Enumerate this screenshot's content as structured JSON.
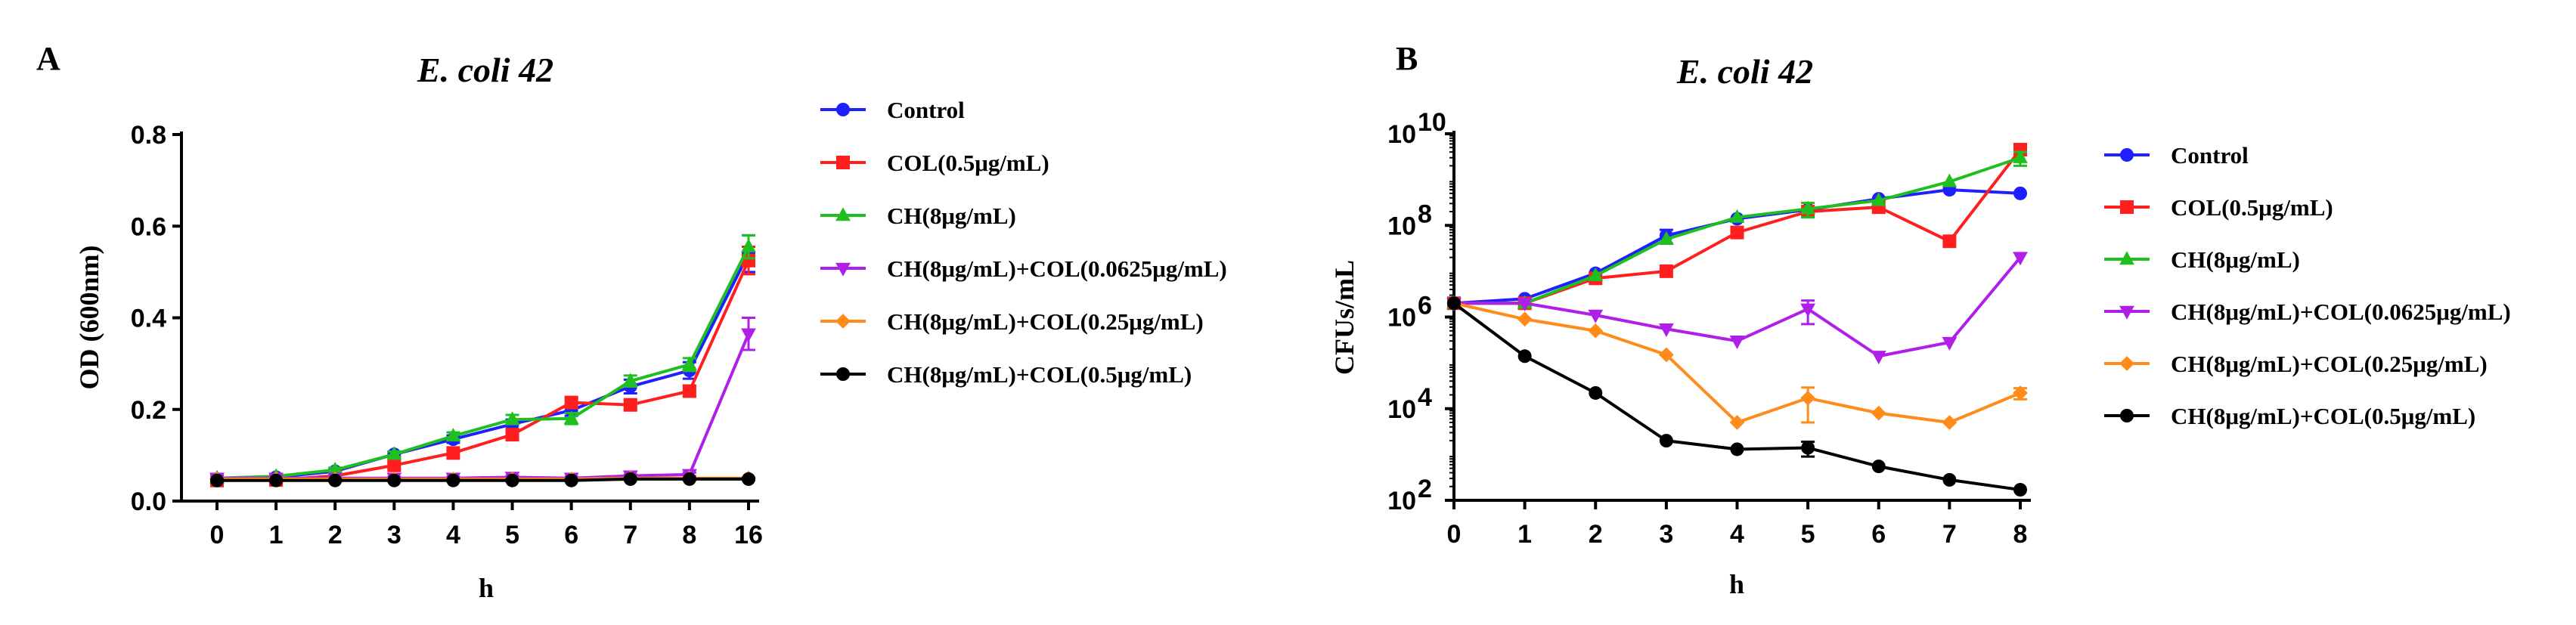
{
  "chart_data": [
    {
      "panel": "A",
      "type": "line",
      "title": "E. coli 42",
      "xlabel": "h",
      "ylabel": "OD (600nm)",
      "y_scale": "linear",
      "categories": [
        "0",
        "1",
        "2",
        "3",
        "4",
        "5",
        "6",
        "7",
        "8",
        "16"
      ],
      "ylim": [
        0,
        0.8
      ],
      "yticks": [
        "0.0",
        "0.2",
        "0.4",
        "0.6",
        "0.8"
      ],
      "legend_position": "right",
      "series": [
        {
          "name": "Control",
          "color": "#1f1fff",
          "marker": "circle",
          "values": [
            0.048,
            0.052,
            0.065,
            0.102,
            0.135,
            0.168,
            0.198,
            0.25,
            0.285,
            0.54
          ],
          "error": [
            0.005,
            0.004,
            0.004,
            0.006,
            0.008,
            0.01,
            0.012,
            0.015,
            0.018,
            0.04
          ]
        },
        {
          "name": "COL(0.5μg/mL)",
          "color": "#ff1f1f",
          "marker": "square",
          "values": [
            0.045,
            0.046,
            0.055,
            0.078,
            0.105,
            0.145,
            0.215,
            0.21,
            0.24,
            0.525
          ],
          "error": [
            0.004,
            0.004,
            0.004,
            0.005,
            0.006,
            0.008,
            0.01,
            0.01,
            0.012,
            0.03
          ]
        },
        {
          "name": "CH(8μg/mL)",
          "color": "#1fbf1f",
          "marker": "triangle",
          "values": [
            0.05,
            0.054,
            0.068,
            0.102,
            0.142,
            0.178,
            0.18,
            0.262,
            0.298,
            0.555
          ],
          "error": [
            0.004,
            0.004,
            0.005,
            0.006,
            0.008,
            0.01,
            0.012,
            0.012,
            0.014,
            0.025
          ]
        },
        {
          "name": "CH(8μg/mL)+COL(0.0625μg/mL)",
          "color": "#b01fe8",
          "marker": "triangle-down",
          "values": [
            0.05,
            0.05,
            0.05,
            0.05,
            0.05,
            0.052,
            0.05,
            0.055,
            0.058,
            0.365
          ],
          "error": [
            0.003,
            0.003,
            0.003,
            0.003,
            0.003,
            0.003,
            0.003,
            0.003,
            0.004,
            0.035
          ]
        },
        {
          "name": "CH(8μg/mL)+COL(0.25μg/mL)",
          "color": "#ff8c1a",
          "marker": "diamond",
          "values": [
            0.048,
            0.048,
            0.048,
            0.048,
            0.048,
            0.048,
            0.048,
            0.05,
            0.05,
            0.05
          ],
          "error": [
            0.002,
            0.002,
            0.002,
            0.002,
            0.002,
            0.002,
            0.002,
            0.002,
            0.002,
            0.002
          ]
        },
        {
          "name": "CH(8μg/mL)+COL(0.5μg/mL)",
          "color": "#000000",
          "marker": "circle",
          "values": [
            0.045,
            0.045,
            0.045,
            0.045,
            0.045,
            0.045,
            0.045,
            0.048,
            0.048,
            0.048
          ],
          "error": [
            0.002,
            0.002,
            0.002,
            0.002,
            0.002,
            0.002,
            0.002,
            0.002,
            0.002,
            0.002
          ]
        }
      ]
    },
    {
      "panel": "B",
      "type": "line",
      "title": "E. coli 42",
      "xlabel": "h",
      "ylabel": "CFUs/mL",
      "y_scale": "log10",
      "categories": [
        "0",
        "1",
        "2",
        "3",
        "4",
        "5",
        "6",
        "7",
        "8"
      ],
      "ylim": [
        100,
        10000000000
      ],
      "yticks": [
        {
          "base": "10",
          "exp": "2"
        },
        {
          "base": "10",
          "exp": "4"
        },
        {
          "base": "10",
          "exp": "6"
        },
        {
          "base": "10",
          "exp": "8"
        },
        {
          "base": "10",
          "exp": "10"
        }
      ],
      "legend_position": "right",
      "series": [
        {
          "name": "Control",
          "color": "#1f1fff",
          "marker": "circle",
          "values": [
            2000000,
            2500000,
            9000000,
            60000000,
            140000000,
            220000000,
            380000000,
            600000000,
            500000000
          ],
          "error": [
            0,
            0,
            0,
            20000000,
            0,
            0,
            0,
            0,
            0
          ]
        },
        {
          "name": "COL(0.5μg/mL)",
          "color": "#ff1f1f",
          "marker": "square",
          "values": [
            2000000,
            2000000,
            7000000,
            10000000,
            70000000,
            200000000,
            250000000,
            45000000,
            4500000000
          ],
          "error": [
            0,
            0,
            0,
            0,
            0,
            0,
            0,
            0,
            1000000000
          ]
        },
        {
          "name": "CH(8μg/mL)",
          "color": "#1fbf1f",
          "marker": "triangle",
          "values": [
            2000000,
            2000000,
            8000000,
            50000000,
            150000000,
            230000000,
            350000000,
            900000000,
            3000000000
          ],
          "error": [
            0,
            0,
            0,
            0,
            0,
            80000000,
            0,
            0,
            1000000000
          ]
        },
        {
          "name": "CH(8μg/mL)+COL(0.0625μg/mL)",
          "color": "#b01fe8",
          "marker": "triangle-down",
          "values": [
            2000000,
            2000000,
            1100000,
            550000,
            300000,
            1500000,
            140000,
            280000,
            20000000
          ],
          "error": [
            0,
            0,
            0,
            0,
            0,
            800000,
            0,
            0,
            0
          ]
        },
        {
          "name": "CH(8μg/mL)+COL(0.25μg/mL)",
          "color": "#ff8c1a",
          "marker": "diamond",
          "values": [
            2000000,
            900000,
            500000,
            150000,
            5000,
            17000,
            8000,
            5000,
            22000
          ],
          "error": [
            0,
            0,
            0,
            0,
            0,
            12000,
            0,
            0,
            6000
          ]
        },
        {
          "name": "CH(8μg/mL)+COL(0.5μg/mL)",
          "color": "#000000",
          "marker": "circle",
          "values": [
            2000000,
            140000,
            22000,
            2000,
            1300,
            1400,
            550,
            280,
            170
          ],
          "error": [
            0,
            0,
            0,
            0,
            0,
            500,
            0,
            0,
            0
          ]
        }
      ]
    }
  ]
}
